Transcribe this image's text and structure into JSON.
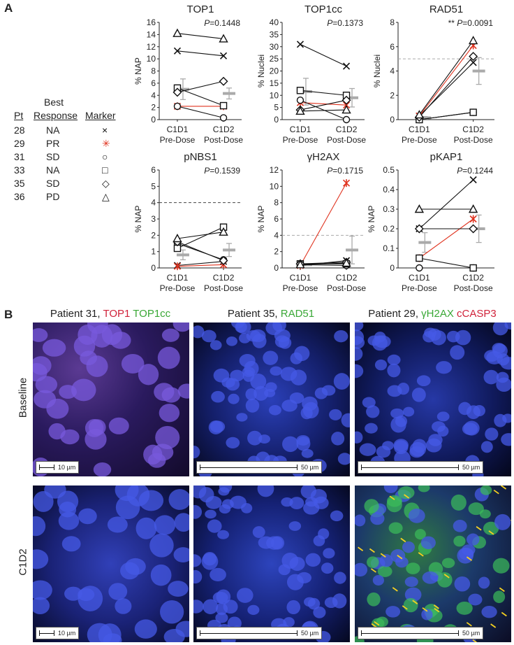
{
  "panel_a_label": "A",
  "panel_b_label": "B",
  "legend": {
    "header_best": "Best",
    "header_pt": "Pt",
    "header_response": "Response",
    "header_marker": "Marker",
    "rows": [
      {
        "pt": "28",
        "response": "NA",
        "marker": "×",
        "color": "#111111"
      },
      {
        "pt": "29",
        "response": "PR",
        "marker": "✳",
        "color": "#e0331f"
      },
      {
        "pt": "31",
        "response": "SD",
        "marker": "○",
        "color": "#111111"
      },
      {
        "pt": "33",
        "response": "NA",
        "marker": "□",
        "color": "#111111"
      },
      {
        "pt": "35",
        "response": "SD",
        "marker": "◇",
        "color": "#111111"
      },
      {
        "pt": "36",
        "response": "PD",
        "marker": "△",
        "color": "#111111"
      }
    ]
  },
  "chart_data": [
    {
      "type": "line",
      "title": "TOP1",
      "pvalue": "P=0.1448",
      "stars": "",
      "ylabel": "% NAP",
      "ylim": [
        0,
        16
      ],
      "yticks": [
        "0",
        "2",
        "4",
        "6",
        "8",
        "10",
        "12",
        "14",
        "16"
      ],
      "categories": [
        "C1D1\nPre-Dose",
        "C1D2\nPost-Dose"
      ],
      "threshold": null,
      "series": [
        {
          "patient": "28",
          "marker": "x",
          "values": [
            11.3,
            10.5
          ]
        },
        {
          "patient": "29",
          "marker": "star",
          "values": [
            2.2,
            2.2
          ]
        },
        {
          "patient": "31",
          "marker": "circle",
          "values": [
            2.2,
            0.3
          ]
        },
        {
          "patient": "33",
          "marker": "square",
          "values": [
            5.2,
            2.3
          ]
        },
        {
          "patient": "35",
          "marker": "diamond",
          "values": [
            4.5,
            6.3
          ]
        },
        {
          "patient": "36",
          "marker": "triangle",
          "values": [
            14.2,
            13.3
          ]
        }
      ],
      "means": [
        5.0,
        4.3
      ],
      "errors": [
        1.7,
        0.9
      ]
    },
    {
      "type": "line",
      "title": "TOP1cc",
      "pvalue": "P=0.1373",
      "stars": "",
      "ylabel": "% Nuclei",
      "ylim": [
        0,
        40
      ],
      "yticks": [
        "0",
        "5",
        "10",
        "15",
        "20",
        "25",
        "30",
        "35",
        "40"
      ],
      "categories": [
        "C1D1\nPre-Dose",
        "C1D2\nPost-Dose"
      ],
      "threshold": null,
      "series": [
        {
          "patient": "28",
          "marker": "x",
          "values": [
            31,
            22
          ]
        },
        {
          "patient": "29",
          "marker": "star",
          "values": [
            7,
            6
          ]
        },
        {
          "patient": "31",
          "marker": "circle",
          "values": [
            8,
            0
          ]
        },
        {
          "patient": "33",
          "marker": "square",
          "values": [
            12,
            10
          ]
        },
        {
          "patient": "35",
          "marker": "diamond",
          "values": [
            4,
            8
          ]
        },
        {
          "patient": "36",
          "marker": "triangle",
          "values": [
            3.5,
            4
          ]
        }
      ],
      "means": [
        11.5,
        9.0
      ],
      "errors": [
        5.5,
        3.8
      ]
    },
    {
      "type": "line",
      "title": "RAD51",
      "pvalue": "P=0.0091",
      "stars": "**",
      "ylabel": "% Nuclei",
      "ylim": [
        0,
        8
      ],
      "yticks": [
        "0",
        "2",
        "4",
        "6",
        "8"
      ],
      "categories": [
        "C1D1\nPre-Dose",
        "C1D2\nPost-Dose"
      ],
      "threshold": 5,
      "series": [
        {
          "patient": "28",
          "marker": "x",
          "values": [
            0.3,
            4.7
          ]
        },
        {
          "patient": "29",
          "marker": "star",
          "values": [
            0.3,
            6.1
          ]
        },
        {
          "patient": "31",
          "marker": "circle",
          "values": [
            0.0,
            0.6
          ]
        },
        {
          "patient": "33",
          "marker": "square",
          "values": [
            0.0,
            0.6
          ]
        },
        {
          "patient": "35",
          "marker": "diamond",
          "values": [
            0.2,
            5.2
          ]
        },
        {
          "patient": "36",
          "marker": "triangle",
          "values": [
            0.4,
            6.5
          ]
        }
      ],
      "means": [
        0.15,
        4.0
      ],
      "errors": [
        0.1,
        1.1
      ]
    },
    {
      "type": "line",
      "title": "pNBS1",
      "pvalue": "P=0.1539",
      "stars": "",
      "ylabel": "% NAP",
      "ylim": [
        0,
        6
      ],
      "yticks": [
        "0",
        "1",
        "2",
        "3",
        "4",
        "5",
        "6"
      ],
      "categories": [
        "C1D1\nPre-Dose",
        "C1D2\nPost-Dose"
      ],
      "threshold": 4,
      "series": [
        {
          "patient": "28",
          "marker": "x",
          "values": [
            0.15,
            0.4
          ]
        },
        {
          "patient": "29",
          "marker": "star",
          "values": [
            0.1,
            0.2
          ]
        },
        {
          "patient": "31",
          "marker": "circle",
          "values": [
            1.5,
            0.5
          ]
        },
        {
          "patient": "33",
          "marker": "square",
          "values": [
            1.2,
            2.5
          ]
        },
        {
          "patient": "35",
          "marker": "diamond",
          "values": [
            1.6,
            0.45
          ]
        },
        {
          "patient": "36",
          "marker": "triangle",
          "values": [
            1.8,
            2.2
          ]
        }
      ],
      "means": [
        0.8,
        1.1
      ],
      "errors": [
        0.3,
        0.4
      ]
    },
    {
      "type": "line",
      "title": "γH2AX",
      "pvalue": "P=0.1715",
      "stars": "",
      "ylabel": "% NAP",
      "ylim": [
        0,
        12
      ],
      "yticks": [
        "0",
        "2",
        "4",
        "6",
        "8",
        "10",
        "12"
      ],
      "categories": [
        "C1D1\nPre-Dose",
        "C1D2\nPost-Dose"
      ],
      "threshold": 4,
      "series": [
        {
          "patient": "28",
          "marker": "x",
          "values": [
            0.3,
            0.9
          ]
        },
        {
          "patient": "29",
          "marker": "star",
          "values": [
            0.3,
            10.4
          ]
        },
        {
          "patient": "31",
          "marker": "circle",
          "values": [
            0.4,
            0.3
          ]
        },
        {
          "patient": "33",
          "marker": "square",
          "values": [
            0.5,
            0.5
          ]
        },
        {
          "patient": "35",
          "marker": "diamond",
          "values": [
            0.5,
            0.7
          ]
        },
        {
          "patient": "36",
          "marker": "triangle",
          "values": [
            0.4,
            0.6
          ]
        }
      ],
      "means": [
        0.4,
        2.2
      ],
      "errors": [
        0.1,
        1.7
      ]
    },
    {
      "type": "line",
      "title": "pKAP1",
      "pvalue": "P=0.1244",
      "stars": "",
      "ylabel": "% NAP",
      "ylim": [
        0,
        0.5
      ],
      "yticks": [
        "0",
        "0.1",
        "0.2",
        "0.3",
        "0.4",
        "0.5"
      ],
      "categories": [
        "C1D1\nPre-Dose",
        "C1D2\nPost-Dose"
      ],
      "threshold": null,
      "series": [
        {
          "patient": "28",
          "marker": "x",
          "values": [
            0.2,
            0.45
          ]
        },
        {
          "patient": "29",
          "marker": "star",
          "values": [
            0.05,
            0.25
          ]
        },
        {
          "patient": "31",
          "marker": "circle",
          "values": [
            0.0,
            0.0
          ]
        },
        {
          "patient": "33",
          "marker": "square",
          "values": [
            0.05,
            0.0
          ]
        },
        {
          "patient": "35",
          "marker": "diamond",
          "values": [
            0.2,
            0.2
          ]
        },
        {
          "patient": "36",
          "marker": "triangle",
          "values": [
            0.3,
            0.3
          ]
        }
      ],
      "means": [
        0.13,
        0.2
      ],
      "errors": [
        0.05,
        0.07
      ]
    }
  ],
  "panel_b": {
    "col_headers": [
      {
        "prefix": "Patient 31, ",
        "parts": [
          {
            "text": "TOP1",
            "color": "#d0223a"
          },
          {
            "text": " ",
            "color": "#222"
          },
          {
            "text": "TOP1cc",
            "color": "#3aa836"
          }
        ]
      },
      {
        "prefix": "Patient 35, ",
        "parts": [
          {
            "text": "RAD51",
            "color": "#3aa836"
          }
        ]
      },
      {
        "prefix": "Patient 29, ",
        "parts": [
          {
            "text": "γH2AX",
            "color": "#3aa836"
          },
          {
            "text": " ",
            "color": "#222"
          },
          {
            "text": "cCASP3",
            "color": "#d0223a"
          }
        ]
      }
    ],
    "row_labels": [
      "Baseline",
      "C1D2"
    ],
    "scalebars": [
      "10 µm",
      "50 µm",
      "50 µm",
      "10 µm",
      "50 µm",
      "50 µm"
    ]
  }
}
